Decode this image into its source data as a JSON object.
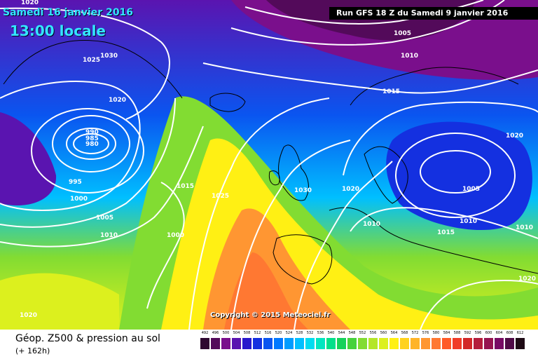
{
  "header": {
    "date": "Samedi 16 janvier 2016",
    "local_time": "13:00 locale",
    "run": "Run GFS 18 Z du Samedi 9 janvier 2016"
  },
  "copyright": "Copyright © 2015 Meteociel.fr",
  "footer": {
    "field_title": "Géop. Z500 & pression au sol",
    "forecast_hour": "(+ 162h)"
  },
  "isobar_labels": [
    "1020",
    "1030",
    "1025",
    "1020",
    "990",
    "985",
    "980",
    "995",
    "1000",
    "1005",
    "1010",
    "1015",
    "1025",
    "1000",
    "1020",
    "1030",
    "1020",
    "1010",
    "1005",
    "1010",
    "1015",
    "1020",
    "1005",
    "1010",
    "1015",
    "1010",
    "1020"
  ],
  "legend": {
    "values": [
      "492",
      "496",
      "500",
      "504",
      "508",
      "512",
      "516",
      "520",
      "524",
      "528",
      "532",
      "536",
      "540",
      "544",
      "548",
      "552",
      "556",
      "560",
      "564",
      "568",
      "572",
      "576",
      "580",
      "584",
      "588",
      "592",
      "596",
      "600",
      "604",
      "608",
      "612"
    ],
    "colors": [
      "#2e0830",
      "#530a5a",
      "#7a0f8c",
      "#5a14b0",
      "#2818cc",
      "#1430e0",
      "#0a55f0",
      "#0078ff",
      "#009cff",
      "#00bfff",
      "#00dcf0",
      "#00e6c0",
      "#00e08a",
      "#14d25a",
      "#46d23c",
      "#82dc32",
      "#b4e628",
      "#dcf01e",
      "#fff014",
      "#ffd21e",
      "#ffb428",
      "#ff9632",
      "#ff7832",
      "#ff5a28",
      "#f03c28",
      "#d22828",
      "#b41e3c",
      "#961450",
      "#780a64",
      "#500a46",
      "#1e0a14"
    ]
  }
}
